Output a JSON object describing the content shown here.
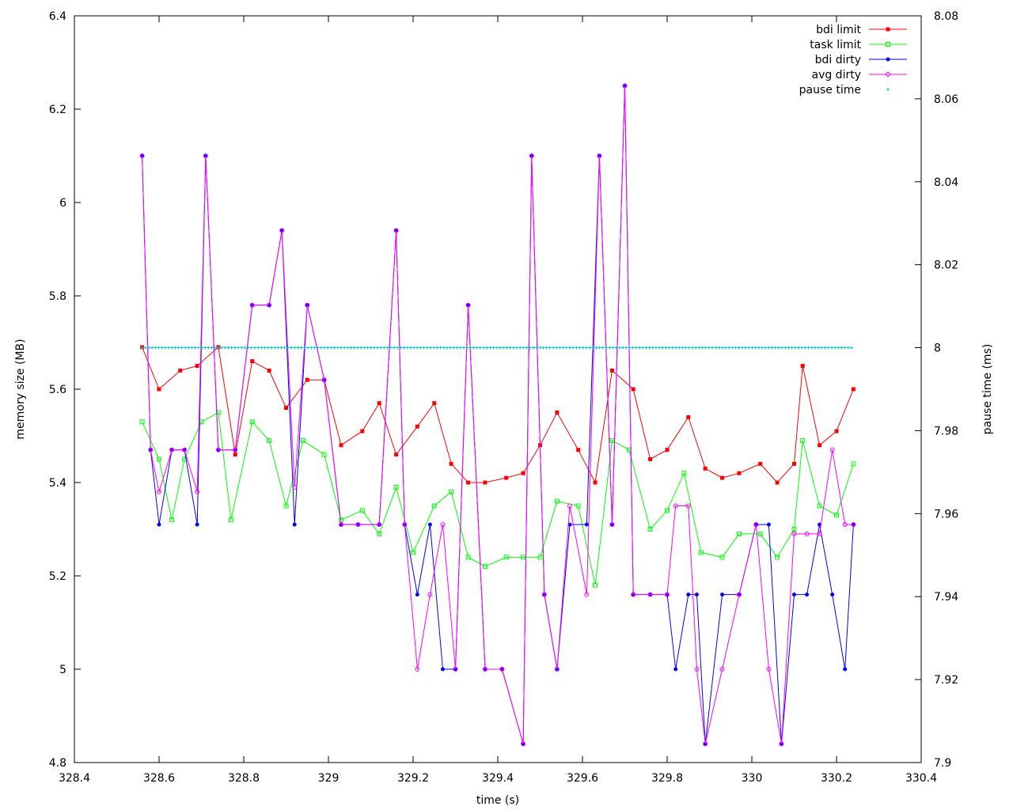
{
  "chart_data": {
    "type": "line",
    "xlabel": "time (s)",
    "ylabel": "memory size (MB)",
    "y2label": "pause time (ms)",
    "xlim": [
      328.4,
      330.4
    ],
    "ylim": [
      4.8,
      6.4
    ],
    "y2lim": [
      7.9,
      8.08
    ],
    "xticks": [
      "328.4",
      "328.6",
      "328.8",
      "329",
      "329.2",
      "329.4",
      "329.6",
      "329.8",
      "330",
      "330.2",
      "330.4"
    ],
    "yticks": [
      "4.8",
      "5",
      "5.2",
      "5.4",
      "5.6",
      "5.8",
      "6",
      "6.2",
      "6.4"
    ],
    "y2ticks": [
      "7.9",
      "7.92",
      "7.94",
      "7.96",
      "7.98",
      "8",
      "8.02",
      "8.04",
      "8.06",
      "8.08"
    ],
    "legend_position": "top-right",
    "grid": false,
    "series": [
      {
        "name": "bdi limit",
        "color": "#ff0000",
        "marker": "filled-square",
        "x": [
          328.56,
          328.6,
          328.65,
          328.69,
          328.74,
          328.78,
          328.82,
          328.86,
          328.9,
          328.95,
          328.99,
          329.03,
          329.08,
          329.12,
          329.16,
          329.21,
          329.25,
          329.29,
          329.33,
          329.37,
          329.42,
          329.46,
          329.5,
          329.54,
          329.59,
          329.63,
          329.67,
          329.72,
          329.76,
          329.8,
          329.85,
          329.89,
          329.93,
          329.97,
          330.02,
          330.06,
          330.1,
          330.12,
          330.16,
          330.2,
          330.24
        ],
        "y": [
          5.69,
          5.6,
          5.64,
          5.65,
          5.69,
          5.46,
          5.66,
          5.64,
          5.56,
          5.62,
          5.62,
          5.48,
          5.51,
          5.57,
          5.46,
          5.52,
          5.57,
          5.44,
          5.4,
          5.4,
          5.41,
          5.42,
          5.48,
          5.55,
          5.47,
          5.4,
          5.64,
          5.6,
          5.45,
          5.47,
          5.54,
          5.43,
          5.41,
          5.42,
          5.44,
          5.4,
          5.44,
          5.65,
          5.48,
          5.51,
          5.6
        ]
      },
      {
        "name": "task limit",
        "color": "#00ff00",
        "marker": "open-square",
        "x": [
          328.56,
          328.6,
          328.63,
          328.66,
          328.7,
          328.74,
          328.77,
          328.82,
          328.86,
          328.9,
          328.94,
          328.99,
          329.03,
          329.08,
          329.12,
          329.16,
          329.2,
          329.25,
          329.29,
          329.33,
          329.37,
          329.42,
          329.46,
          329.5,
          329.54,
          329.59,
          329.63,
          329.67,
          329.71,
          329.76,
          329.8,
          329.84,
          329.88,
          329.93,
          329.97,
          330.02,
          330.06,
          330.1,
          330.12,
          330.16,
          330.2,
          330.24
        ],
        "y": [
          5.53,
          5.45,
          5.32,
          5.45,
          5.53,
          5.55,
          5.32,
          5.53,
          5.49,
          5.35,
          5.49,
          5.46,
          5.32,
          5.34,
          5.29,
          5.39,
          5.25,
          5.35,
          5.38,
          5.24,
          5.22,
          5.24,
          5.24,
          5.24,
          5.36,
          5.35,
          5.18,
          5.49,
          5.47,
          5.3,
          5.34,
          5.42,
          5.25,
          5.24,
          5.29,
          5.29,
          5.24,
          5.3,
          5.49,
          5.35,
          5.33,
          5.44
        ]
      },
      {
        "name": "bdi dirty",
        "color": "#0000ff",
        "marker": "filled-circle",
        "x": [
          328.56,
          328.58,
          328.6,
          328.63,
          328.66,
          328.69,
          328.71,
          328.74,
          328.78,
          328.82,
          328.86,
          328.89,
          328.92,
          328.95,
          328.99,
          329.03,
          329.07,
          329.12,
          329.16,
          329.18,
          329.21,
          329.24,
          329.27,
          329.3,
          329.33,
          329.37,
          329.41,
          329.46,
          329.48,
          329.51,
          329.54,
          329.57,
          329.61,
          329.64,
          329.67,
          329.7,
          329.72,
          329.76,
          329.8,
          329.82,
          329.85,
          329.87,
          329.89,
          329.93,
          329.97,
          330.01,
          330.04,
          330.07,
          330.1,
          330.13,
          330.16,
          330.19,
          330.22,
          330.24
        ],
        "y": [
          6.1,
          5.47,
          5.31,
          5.47,
          5.47,
          5.31,
          6.1,
          5.47,
          5.47,
          5.78,
          5.78,
          5.94,
          5.31,
          5.78,
          5.62,
          5.31,
          5.31,
          5.31,
          5.94,
          5.31,
          5.16,
          5.31,
          5.0,
          5.0,
          5.78,
          5.0,
          5.0,
          4.84,
          6.1,
          5.16,
          5.0,
          5.31,
          5.31,
          6.1,
          5.31,
          6.25,
          5.16,
          5.16,
          5.16,
          5.0,
          5.16,
          5.16,
          4.84,
          5.16,
          5.16,
          5.31,
          5.31,
          4.84,
          5.16,
          5.16,
          5.31,
          5.16,
          5.0,
          5.31
        ]
      },
      {
        "name": "avg dirty",
        "color": "#ff00ff",
        "marker": "open-circle",
        "x": [
          328.56,
          328.58,
          328.6,
          328.63,
          328.66,
          328.69,
          328.71,
          328.74,
          328.78,
          328.82,
          328.86,
          328.89,
          328.92,
          328.95,
          328.99,
          329.03,
          329.07,
          329.12,
          329.16,
          329.18,
          329.21,
          329.24,
          329.27,
          329.3,
          329.33,
          329.37,
          329.41,
          329.46,
          329.48,
          329.51,
          329.54,
          329.57,
          329.61,
          329.64,
          329.67,
          329.7,
          329.72,
          329.76,
          329.8,
          329.82,
          329.85,
          329.87,
          329.89,
          329.93,
          329.97,
          330.01,
          330.04,
          330.07,
          330.1,
          330.13,
          330.16,
          330.19,
          330.22,
          330.24
        ],
        "y": [
          6.1,
          5.47,
          5.38,
          5.47,
          5.47,
          5.38,
          6.1,
          5.47,
          5.47,
          5.78,
          5.78,
          5.94,
          5.39,
          5.78,
          5.62,
          5.31,
          5.31,
          5.31,
          5.94,
          5.31,
          5.0,
          5.16,
          5.31,
          5.0,
          5.78,
          5.0,
          5.0,
          4.84,
          6.1,
          5.16,
          5.0,
          5.35,
          5.16,
          6.1,
          5.31,
          6.25,
          5.16,
          5.16,
          5.16,
          5.35,
          5.35,
          5.0,
          4.84,
          5.0,
          5.16,
          5.31,
          5.0,
          4.84,
          5.29,
          5.29,
          5.29,
          5.47,
          5.31,
          5.31
        ]
      },
      {
        "name": "pause time",
        "color": "#00cccc",
        "marker": "plus",
        "axis": "y2",
        "x_start": 328.56,
        "x_end": 330.24,
        "y": 8.0
      }
    ]
  }
}
